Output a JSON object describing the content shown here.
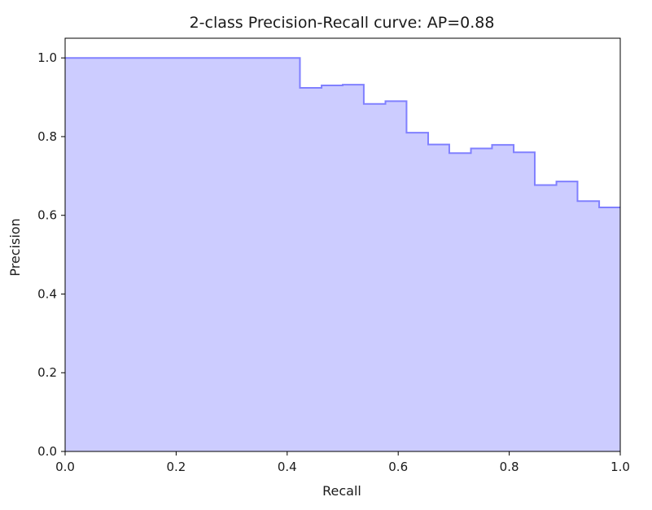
{
  "chart_data": {
    "type": "area",
    "title": "2-class Precision-Recall curve: AP=0.88",
    "xlabel": "Recall",
    "ylabel": "Precision",
    "xlim": [
      0.0,
      1.0
    ],
    "ylim": [
      0.0,
      1.05
    ],
    "xticks": [
      0.0,
      0.2,
      0.4,
      0.6,
      0.8,
      1.0
    ],
    "xtick_labels": [
      "0.0",
      "0.2",
      "0.4",
      "0.6",
      "0.8",
      "1.0"
    ],
    "yticks": [
      0.0,
      0.2,
      0.4,
      0.6,
      0.8,
      1.0
    ],
    "ytick_labels": [
      "0.0",
      "0.2",
      "0.4",
      "0.6",
      "0.8",
      "1.0"
    ],
    "grid": false,
    "step": "post",
    "fill_color": "#ccccff",
    "line_color": "#8080ff",
    "series": [
      {
        "recall": [
          0.0,
          0.423,
          0.462,
          0.5,
          0.538,
          0.577,
          0.615,
          0.654,
          0.692,
          0.731,
          0.769,
          0.808,
          0.846,
          0.885,
          0.923,
          0.962,
          1.0
        ],
        "precision": [
          1.0,
          0.924,
          0.93,
          0.932,
          0.883,
          0.89,
          0.81,
          0.78,
          0.758,
          0.77,
          0.779,
          0.76,
          0.677,
          0.686,
          0.636,
          0.62,
          0.62
        ]
      }
    ]
  }
}
